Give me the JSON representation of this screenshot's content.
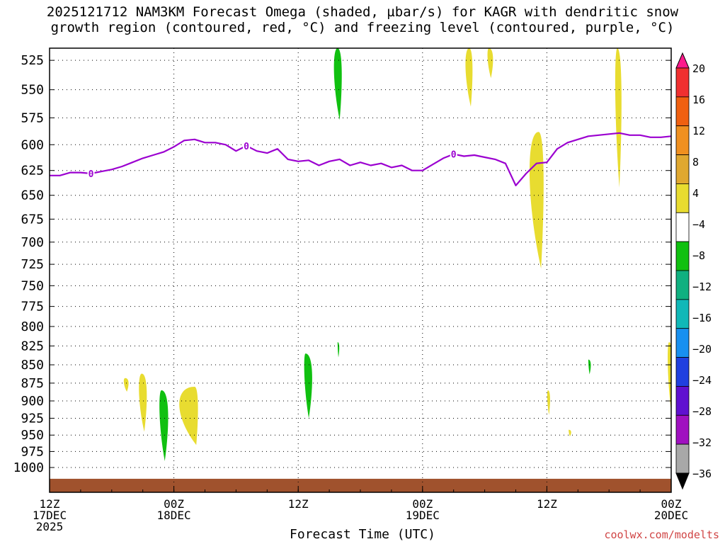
{
  "title_line1": "2025121712 NAM3KM Forecast Omega (shaded, µbar/s) for KAGR with dendritic snow",
  "title_line2": "growth region (contoured, red, °C) and freezing level (contoured, purple, °C)",
  "credit": "coolwx.com/modelts",
  "chart_data": {
    "type": "time-height cross section",
    "xlabel": "Forecast Time (UTC)",
    "x_hours_range": [
      0,
      60
    ],
    "x_ticks": [
      {
        "hour": 0,
        "lines": [
          "12Z",
          "17DEC",
          "2025"
        ]
      },
      {
        "hour": 12,
        "lines": [
          "00Z",
          "18DEC"
        ]
      },
      {
        "hour": 24,
        "lines": [
          "12Z"
        ]
      },
      {
        "hour": 36,
        "lines": [
          "00Z",
          "19DEC"
        ]
      },
      {
        "hour": 48,
        "lines": [
          "12Z"
        ]
      },
      {
        "hour": 60,
        "lines": [
          "00Z",
          "20DEC"
        ]
      }
    ],
    "ylabel": "",
    "y_axis": "pressure (hPa), log scale, inverted",
    "ylim": [
      1040,
      515
    ],
    "y_ticks": [
      525,
      550,
      575,
      600,
      625,
      650,
      675,
      700,
      725,
      750,
      775,
      800,
      825,
      850,
      875,
      900,
      925,
      950,
      975,
      1000
    ],
    "grid": "dotted",
    "colorbar": {
      "labels": [
        "20",
        "16",
        "12",
        "8",
        "4",
        "−4",
        "−8",
        "−12",
        "−16",
        "−20",
        "−24",
        "−28",
        "−32",
        "−36"
      ],
      "colors": [
        "#ff1a8c",
        "#f03030",
        "#f06010",
        "#f09020",
        "#e0a830",
        "#e8dc30",
        "#ffffff",
        "#10c010",
        "#10b080",
        "#10b8b8",
        "#1890f0",
        "#2040e0",
        "#6010d0",
        "#a010c0",
        "#a8a8a8",
        "#000000"
      ]
    },
    "freezing_level": {
      "color": "#9b00d0",
      "label": "0",
      "label_hours": [
        4,
        19,
        39
      ],
      "hours": [
        0,
        1,
        2,
        3,
        4,
        5,
        6,
        7,
        8,
        9,
        10,
        11,
        12,
        13,
        14,
        15,
        16,
        17,
        18,
        19,
        20,
        21,
        22,
        23,
        24,
        25,
        26,
        27,
        28,
        29,
        30,
        31,
        32,
        33,
        34,
        35,
        36,
        37,
        38,
        39,
        40,
        41,
        42,
        43,
        44,
        45,
        46,
        47,
        48,
        49,
        50,
        51,
        52,
        53,
        54,
        55,
        56,
        57,
        58,
        59,
        60
      ],
      "pressure": [
        630,
        630,
        627,
        627,
        628,
        626,
        624,
        621,
        617,
        613,
        610,
        607,
        602,
        596,
        595,
        598,
        598,
        600,
        606,
        601,
        606,
        608,
        604,
        614,
        616,
        615,
        620,
        616,
        614,
        620,
        617,
        620,
        618,
        622,
        620,
        625,
        625,
        619,
        613,
        609,
        611,
        610,
        612,
        614,
        618,
        640,
        628,
        618,
        617,
        604,
        598,
        595,
        592,
        591,
        590,
        589,
        591,
        591,
        593,
        593,
        592
      ]
    },
    "omega_areas": [
      {
        "sign": "positive",
        "color": "#e8dc30",
        "start_hour": 7.1,
        "center_hour": 7.3,
        "half_width_hours": 0.3,
        "top_hPa": 868,
        "bottom_hPa": 887
      },
      {
        "sign": "positive",
        "color": "#e8dc30",
        "start_hour": 8.5,
        "center_hour": 8.9,
        "half_width_hours": 0.5,
        "top_hPa": 862,
        "bottom_hPa": 945
      },
      {
        "sign": "negative",
        "color": "#10c010",
        "start_hour": 10.5,
        "center_hour": 10.8,
        "half_width_hours": 0.55,
        "top_hPa": 885,
        "bottom_hPa": 990
      },
      {
        "sign": "positive",
        "color": "#e8dc30",
        "start_hour": 12.0,
        "center_hour": 14.0,
        "half_width_hours": 1.2,
        "top_hPa": 880,
        "bottom_hPa": 965
      },
      {
        "sign": "negative",
        "color": "#10c010",
        "start_hour": 27.3,
        "center_hour": 27.8,
        "half_width_hours": 0.5,
        "top_hPa": 515,
        "bottom_hPa": 577
      },
      {
        "sign": "negative",
        "color": "#10c010",
        "start_hour": 27.8,
        "center_hour": 27.8,
        "half_width_hours": 0.1,
        "top_hPa": 820,
        "bottom_hPa": 840
      },
      {
        "sign": "negative",
        "color": "#10c010",
        "start_hour": 24.5,
        "center_hour": 24.7,
        "half_width_hours": 0.5,
        "top_hPa": 835,
        "bottom_hPa": 925
      },
      {
        "sign": "positive",
        "color": "#e8dc30",
        "start_hour": 40.0,
        "center_hour": 40.5,
        "half_width_hours": 0.45,
        "top_hPa": 515,
        "bottom_hPa": 565
      },
      {
        "sign": "positive",
        "color": "#e8dc30",
        "start_hour": 42.2,
        "center_hour": 42.4,
        "half_width_hours": 0.35,
        "top_hPa": 515,
        "bottom_hPa": 540
      },
      {
        "sign": "positive",
        "color": "#e8dc30",
        "start_hour": 46.0,
        "center_hour": 47.2,
        "half_width_hours": 0.9,
        "top_hPa": 588,
        "bottom_hPa": 730
      },
      {
        "sign": "positive",
        "color": "#e8dc30",
        "start_hour": 48.0,
        "center_hour": 48.1,
        "half_width_hours": 0.18,
        "top_hPa": 885,
        "bottom_hPa": 920
      },
      {
        "sign": "positive",
        "color": "#e8dc30",
        "start_hour": 50.1,
        "center_hour": 50.1,
        "half_width_hours": 0.15,
        "top_hPa": 942,
        "bottom_hPa": 952
      },
      {
        "sign": "negative",
        "color": "#10c010",
        "start_hour": 52.0,
        "center_hour": 52.0,
        "half_width_hours": 0.15,
        "top_hPa": 843,
        "bottom_hPa": 863
      },
      {
        "sign": "positive",
        "color": "#e8dc30",
        "start_hour": 54.5,
        "center_hour": 54.8,
        "half_width_hours": 0.4,
        "top_hPa": 515,
        "bottom_hPa": 642
      },
      {
        "sign": "positive",
        "color": "#e8dc30",
        "start_hour": 59.6,
        "center_hour": 59.8,
        "half_width_hours": 0.3,
        "top_hPa": 820,
        "bottom_hPa": 910
      }
    ],
    "terrain": {
      "color": "#a0522d",
      "top_hPa": 1018
    }
  }
}
